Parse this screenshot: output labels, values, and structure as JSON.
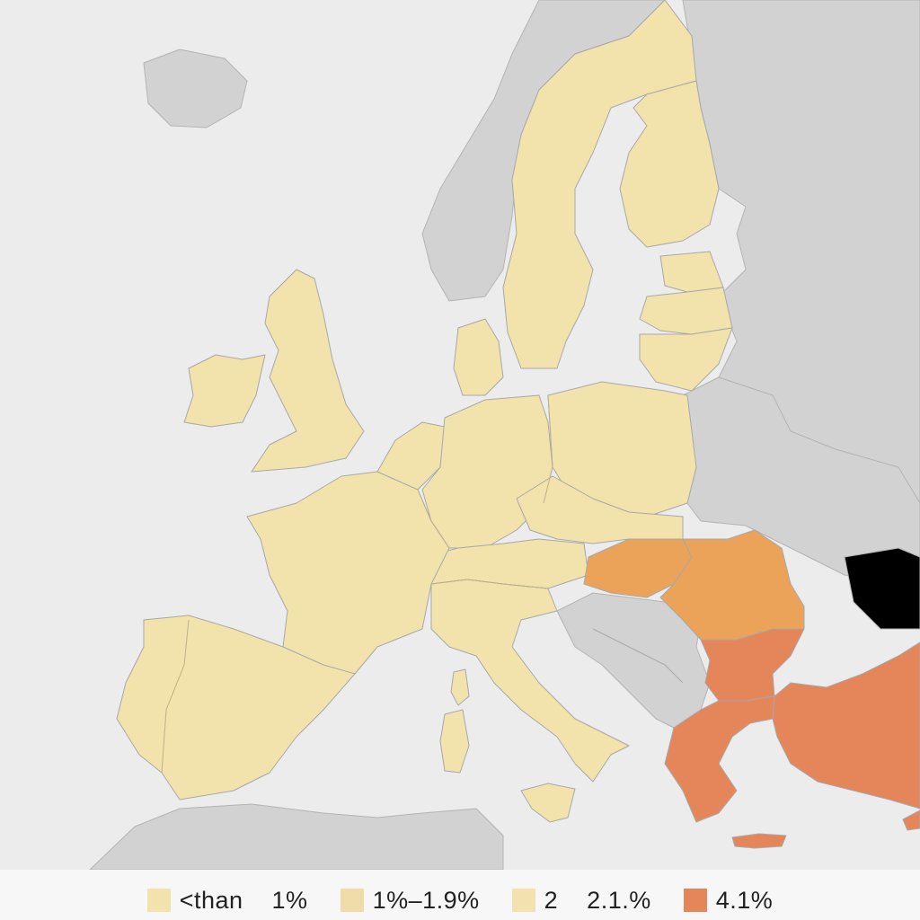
{
  "map": {
    "colors": {
      "sea": "#ececec",
      "non_member_land": "#d2d2d2",
      "lt_1": "#f2e3ad",
      "band_1_1_9": "#efdca8",
      "band_2_2_1": "#f3e2b0",
      "band_mid": "#eba35a",
      "band_4_1": "#e5855a"
    },
    "regions": [
      {
        "name": "Iceland",
        "band": "non_member"
      },
      {
        "name": "Norway",
        "band": "non_member"
      },
      {
        "name": "Sweden",
        "band": "lt_1"
      },
      {
        "name": "Finland",
        "band": "lt_1"
      },
      {
        "name": "Estonia",
        "band": "lt_1"
      },
      {
        "name": "Latvia",
        "band": "lt_1"
      },
      {
        "name": "Lithuania",
        "band": "lt_1"
      },
      {
        "name": "Ireland",
        "band": "lt_1"
      },
      {
        "name": "United Kingdom",
        "band": "lt_1"
      },
      {
        "name": "Denmark",
        "band": "lt_1"
      },
      {
        "name": "Netherlands",
        "band": "lt_1"
      },
      {
        "name": "Belgium",
        "band": "lt_1"
      },
      {
        "name": "Germany",
        "band": "lt_1"
      },
      {
        "name": "Poland",
        "band": "lt_1"
      },
      {
        "name": "Czechia",
        "band": "lt_1"
      },
      {
        "name": "Slovakia",
        "band": "lt_1"
      },
      {
        "name": "Austria",
        "band": "lt_1"
      },
      {
        "name": "Switzerland",
        "band": "lt_1"
      },
      {
        "name": "France",
        "band": "lt_1"
      },
      {
        "name": "Spain",
        "band": "lt_1"
      },
      {
        "name": "Portugal",
        "band": "lt_1"
      },
      {
        "name": "Italy",
        "band": "lt_1"
      },
      {
        "name": "Slovenia",
        "band": "lt_1"
      },
      {
        "name": "Hungary",
        "band": "band_mid"
      },
      {
        "name": "Romania",
        "band": "band_mid"
      },
      {
        "name": "Bulgaria",
        "band": "band_4_1"
      },
      {
        "name": "Greece",
        "band": "band_4_1"
      },
      {
        "name": "Turkey",
        "band": "band_4_1"
      },
      {
        "name": "Cyprus",
        "band": "band_4_1"
      },
      {
        "name": "Balkans",
        "band": "non_member"
      },
      {
        "name": "Belarus",
        "band": "non_member"
      },
      {
        "name": "Ukraine",
        "band": "non_member"
      },
      {
        "name": "Russia",
        "band": "non_member"
      },
      {
        "name": "North Africa",
        "band": "non_member"
      }
    ]
  },
  "legend": {
    "items": [
      {
        "label": "<than    1%",
        "color": "#f2e3ad"
      },
      {
        "label": "1%–1.9%",
        "color": "#efdca8"
      },
      {
        "label": "2    2.1.%",
        "color": "#f3e2b0"
      },
      {
        "label": "4.1%",
        "color": "#e5855a"
      }
    ]
  }
}
